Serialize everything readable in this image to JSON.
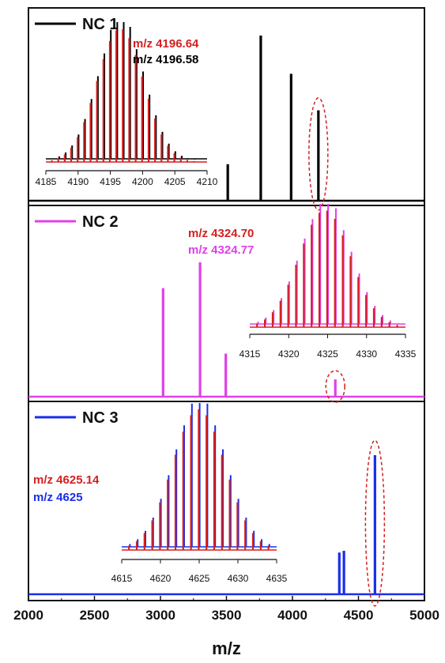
{
  "chart_data": {
    "type": "line",
    "xlabel": "m/z",
    "xlim": [
      2000,
      5000
    ],
    "x_ticks": [
      "2000",
      "2500",
      "3000",
      "3500",
      "4000",
      "4500",
      "5000"
    ],
    "panels": [
      {
        "legend": "NC 1",
        "color": "#000000",
        "peaks": [
          {
            "x": 3510,
            "y": 0.21
          },
          {
            "x": 3760,
            "y": 0.95
          },
          {
            "x": 3990,
            "y": 0.73
          },
          {
            "x": 4196.6,
            "y": 0.52
          }
        ],
        "circled_peak_x": 4196.6,
        "inset": {
          "xlim": [
            4185,
            4210
          ],
          "x_ticks": [
            "4185",
            "4190",
            "4195",
            "4200",
            "4205",
            "4210"
          ],
          "exp_label": "m/z 4196.58",
          "exp_color": "#000000",
          "sim_label": "m/z 4196.64",
          "sim_color": "#d42020",
          "center": 4196.6,
          "sigma": 3.6,
          "start": 4186,
          "end": 4208,
          "spacing": 1.0
        }
      },
      {
        "legend": "NC 2",
        "color": "#e040e8",
        "peaks": [
          {
            "x": 3020,
            "y": 0.63
          },
          {
            "x": 3300,
            "y": 0.78
          },
          {
            "x": 3495,
            "y": 0.25
          },
          {
            "x": 4324.7,
            "y": 0.1
          }
        ],
        "circled_peak_x": 4324.7,
        "inset": {
          "xlim": [
            4315,
            4335
          ],
          "x_ticks": [
            "4315",
            "4320",
            "4325",
            "4330",
            "4335"
          ],
          "exp_label": "m/z 4324.77",
          "exp_color": "#e040e8",
          "sim_label": "m/z 4324.70",
          "sim_color": "#d42020",
          "center": 4324.7,
          "sigma": 3.3,
          "start": 4316,
          "end": 4334,
          "spacing": 1.0
        }
      },
      {
        "legend": "NC 3",
        "color": "#1a2ee8",
        "peaks": [
          {
            "x": 4355,
            "y": 0.24
          },
          {
            "x": 4390,
            "y": 0.25
          },
          {
            "x": 4625,
            "y": 0.8
          }
        ],
        "circled_peak_x": 4625,
        "inset": {
          "xlim": [
            4615,
            4635
          ],
          "x_ticks": [
            "4615",
            "4620",
            "4625",
            "4630",
            "4635"
          ],
          "exp_label": "m/z 4625",
          "exp_color": "#1a2ee8",
          "sim_label": "m/z 4625.14",
          "sim_color": "#d42020",
          "center": 4625,
          "sigma": 3.4,
          "start": 4616,
          "end": 4634,
          "spacing": 1.0
        }
      }
    ]
  }
}
